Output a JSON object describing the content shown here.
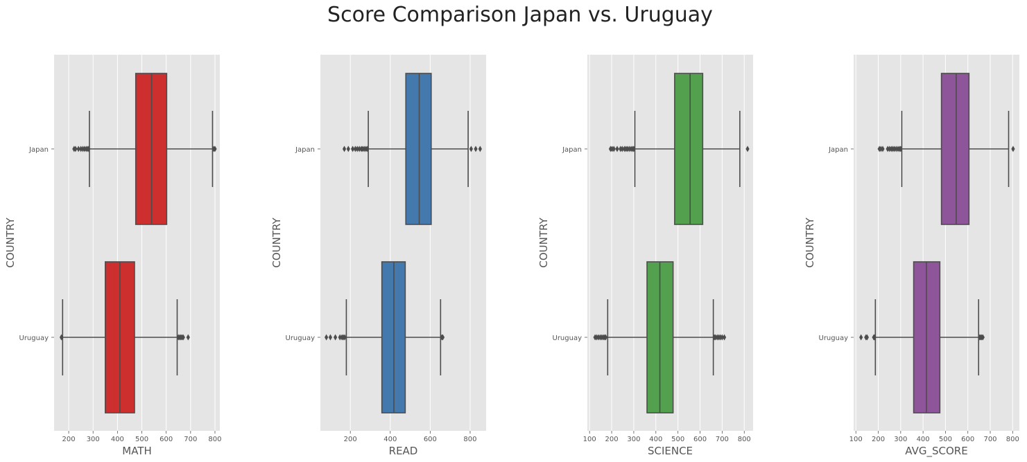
{
  "title": "Score Comparison Japan vs. Uruguay",
  "colors": {
    "panel_bg": "#e5e5e5",
    "grid": "#ffffff",
    "line": "#4c4c4c",
    "math": "#cd2f2f",
    "read": "#4479ad",
    "science": "#53a04f",
    "avg_score": "#8f559a"
  },
  "chart_data": [
    {
      "type": "boxplot",
      "orientation": "horizontal",
      "xlabel": "MATH",
      "ylabel": "COUNTRY",
      "xlim": [
        140,
        820
      ],
      "xticks": [
        200,
        300,
        400,
        500,
        600,
        700,
        800
      ],
      "grid": true,
      "color": "#cd2f2f",
      "categories": [
        "Japan",
        "Uruguay"
      ],
      "boxes": [
        {
          "q1": 475,
          "median": 540,
          "q3": 602,
          "whisker_low": 285,
          "whisker_high": 790,
          "outliers": [
            222,
            228,
            240,
            250,
            258,
            265,
            272,
            278,
            282,
            795,
            800
          ]
        },
        {
          "q1": 350,
          "median": 410,
          "q3": 470,
          "whisker_low": 175,
          "whisker_high": 645,
          "outliers": [
            170,
            650,
            655,
            660,
            665,
            670,
            690
          ]
        }
      ]
    },
    {
      "type": "boxplot",
      "orientation": "horizontal",
      "xlabel": "READ",
      "ylabel": "COUNTRY",
      "xlim": [
        50,
        880
      ],
      "xticks": [
        200,
        400,
        600,
        800
      ],
      "grid": true,
      "color": "#4479ad",
      "categories": [
        "Japan",
        "Uruguay"
      ],
      "boxes": [
        {
          "q1": 478,
          "median": 545,
          "q3": 605,
          "whisker_low": 290,
          "whisker_high": 790,
          "outliers": [
            170,
            190,
            212,
            225,
            235,
            245,
            255,
            262,
            270,
            278,
            285,
            805,
            828,
            850
          ]
        },
        {
          "q1": 358,
          "median": 418,
          "q3": 475,
          "whisker_low": 180,
          "whisker_high": 652,
          "outliers": [
            80,
            100,
            125,
            148,
            158,
            165,
            172,
            658,
            663
          ]
        }
      ]
    },
    {
      "type": "boxplot",
      "orientation": "horizontal",
      "xlabel": "SCIENCE",
      "ylabel": "COUNTRY",
      "xlim": [
        90,
        840
      ],
      "xticks": [
        100,
        200,
        300,
        400,
        500,
        600,
        700,
        800
      ],
      "grid": true,
      "color": "#53a04f",
      "categories": [
        "Japan",
        "Uruguay"
      ],
      "boxes": [
        {
          "q1": 485,
          "median": 555,
          "q3": 612,
          "whisker_low": 305,
          "whisker_high": 780,
          "outliers": [
            195,
            202,
            210,
            225,
            240,
            248,
            258,
            265,
            272,
            280,
            288,
            295,
            300,
            815
          ]
        },
        {
          "q1": 360,
          "median": 418,
          "q3": 478,
          "whisker_low": 182,
          "whisker_high": 660,
          "outliers": [
            125,
            132,
            140,
            148,
            155,
            162,
            168,
            173,
            665,
            670,
            678,
            685,
            692,
            700,
            710
          ]
        }
      ]
    },
    {
      "type": "boxplot",
      "orientation": "horizontal",
      "xlabel": "AVG_SCORE",
      "ylabel": "COUNTRY",
      "xlim": [
        90,
        830
      ],
      "xticks": [
        100,
        200,
        300,
        400,
        500,
        600,
        700,
        800
      ],
      "grid": true,
      "color": "#8f559a",
      "categories": [
        "Japan",
        "Uruguay"
      ],
      "boxes": [
        {
          "q1": 482,
          "median": 548,
          "q3": 605,
          "whisker_low": 305,
          "whisker_high": 782,
          "outliers": [
            205,
            212,
            220,
            242,
            250,
            258,
            265,
            272,
            280,
            288,
            295,
            300,
            802
          ]
        },
        {
          "q1": 358,
          "median": 415,
          "q3": 475,
          "whisker_low": 187,
          "whisker_high": 648,
          "outliers": [
            123,
            145,
            150,
            180,
            183,
            653,
            657,
            662,
            667
          ]
        }
      ]
    }
  ]
}
